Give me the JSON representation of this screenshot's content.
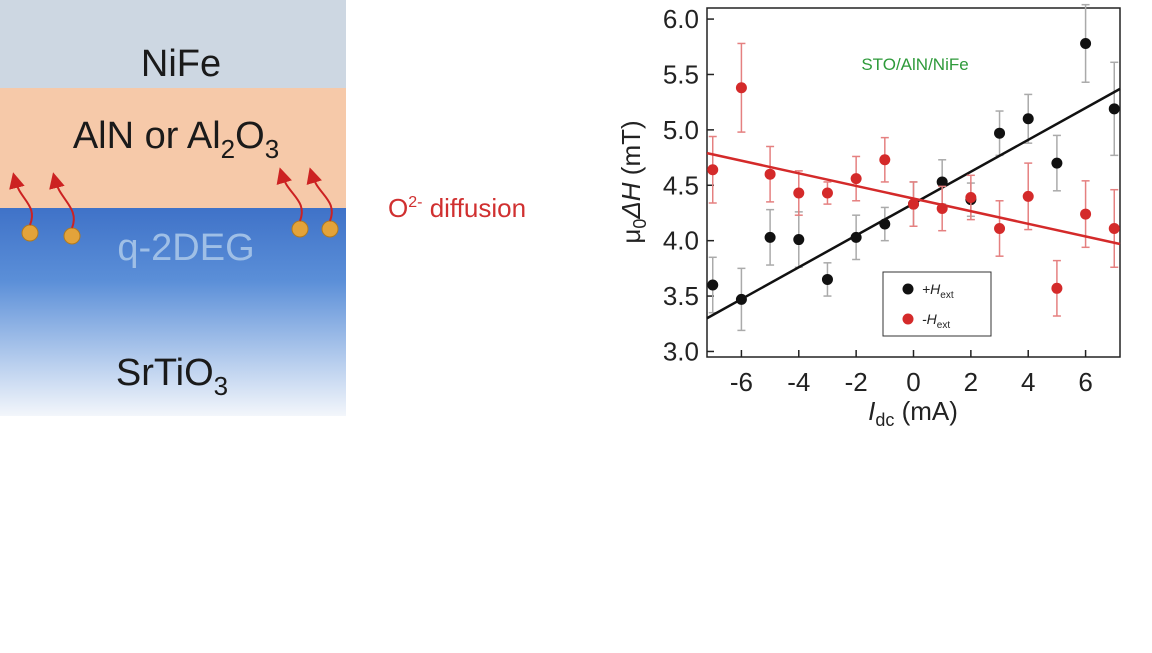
{
  "diagram": {
    "top_layer": "NiFe",
    "middle_layer": [
      "AlN or Al",
      "2",
      "O",
      "3"
    ],
    "interface": "q-2DEG",
    "substrate": [
      "SrTiO",
      "3"
    ],
    "diffusion": [
      "O",
      "2-",
      " diffusion"
    ]
  },
  "chart_data": {
    "type": "scatter",
    "annotation": "STO/AlN/NiFe",
    "xlabel": [
      "I",
      "dc",
      " (mA)"
    ],
    "ylabel": [
      "μ",
      "0",
      "ΔH",
      " (mT)"
    ],
    "x": [
      -7,
      -6,
      -5,
      -4,
      -3,
      -2,
      -1,
      0,
      1,
      2,
      3,
      4,
      5,
      6,
      7
    ],
    "series": [
      {
        "name": "+H",
        "name_sub": "ext",
        "color": "#111111",
        "error_color": "#aaaaaa",
        "values": [
          3.6,
          3.47,
          4.03,
          4.01,
          3.65,
          4.03,
          4.15,
          4.33,
          4.53,
          4.37,
          4.97,
          5.1,
          4.7,
          5.78,
          5.19
        ],
        "errors": [
          0.25,
          0.28,
          0.25,
          0.25,
          0.15,
          0.2,
          0.15,
          0.2,
          0.2,
          0.15,
          0.2,
          0.22,
          0.25,
          0.35,
          0.42
        ],
        "fit": {
          "x": [
            -7.2,
            7.2
          ],
          "values": [
            3.3,
            5.37
          ]
        }
      },
      {
        "name": "-H",
        "name_sub": "ext",
        "color": "#d42a2a",
        "error_color": "#e58080",
        "values": [
          4.64,
          5.38,
          4.6,
          4.43,
          4.43,
          4.56,
          4.73,
          4.33,
          4.29,
          4.39,
          4.11,
          4.4,
          3.57,
          4.24,
          4.11
        ],
        "errors": [
          0.3,
          0.4,
          0.25,
          0.2,
          0.1,
          0.2,
          0.2,
          0.2,
          0.2,
          0.2,
          0.25,
          0.3,
          0.25,
          0.3,
          0.35
        ],
        "fit": {
          "x": [
            -7.2,
            7.2
          ],
          "values": [
            4.79,
            3.97
          ]
        }
      }
    ],
    "xlim": [
      -7.2,
      7.2
    ],
    "ylim": [
      2.95,
      6.1
    ],
    "xticks": [
      -6,
      -4,
      -2,
      0,
      2,
      4,
      6
    ],
    "yticks": [
      {
        "value": 3,
        "label": "3.0"
      },
      {
        "value": 3.5,
        "label": "3.5"
      },
      {
        "value": 4,
        "label": "4.0"
      },
      {
        "value": 4.5,
        "label": "4.5"
      },
      {
        "value": 5,
        "label": "5.0"
      },
      {
        "value": 5.5,
        "label": "5.5"
      },
      {
        "value": 6,
        "label": "6.0"
      }
    ]
  }
}
